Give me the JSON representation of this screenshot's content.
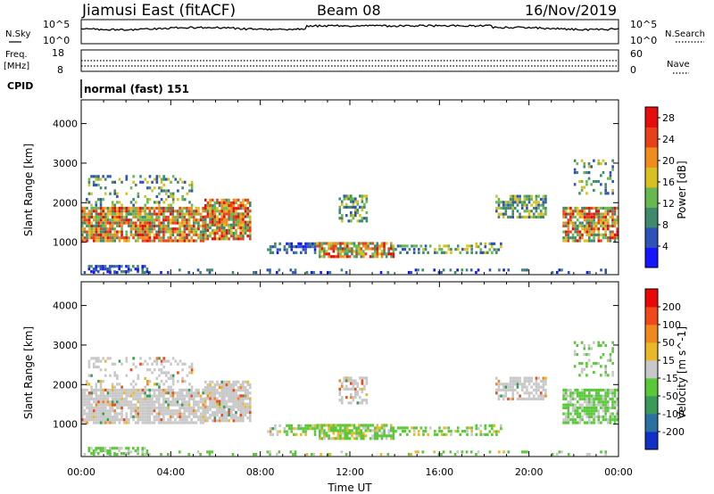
{
  "header": {
    "station": "Jiamusi East (fitACF)",
    "beam": "Beam 08",
    "date": "16/Nov/2019"
  },
  "top_panels": {
    "nsky_label": "N.Sky",
    "nsky_ticks": [
      "10^5",
      "10^0"
    ],
    "nsearch_label": "N.Search",
    "nsearch_ticks": [
      "10^5",
      "10^0"
    ],
    "freq_label_1": "Freq.",
    "freq_label_2": "[MHz]",
    "freq_ticks": [
      "18",
      "8"
    ],
    "nave_label": "Nave",
    "nave_ticks": [
      "60",
      "0"
    ],
    "cpid_label": "CPID",
    "cpid_value": "normal (fast) 151"
  },
  "chart_data": [
    {
      "type": "heatmap",
      "name": "power-panel",
      "xlabel": "",
      "ylabel": "Slant Range [km]",
      "yticks": [
        "1000",
        "2000",
        "3000",
        "4000"
      ],
      "yrange_km": [
        180,
        4600
      ],
      "xrange_hours": [
        0,
        24
      ],
      "colorbar": {
        "label": "Power [dB]",
        "ticks": [
          "4",
          "8",
          "12",
          "16",
          "20",
          "24",
          "28"
        ],
        "range": [
          0,
          30
        ],
        "colors": [
          "#1515ff",
          "#2f52b8",
          "#3f8a6c",
          "#68b850",
          "#d8c020",
          "#f08c1c",
          "#e84018",
          "#e80c0c"
        ]
      }
    },
    {
      "type": "heatmap",
      "name": "velocity-panel",
      "xlabel": "Time UT",
      "ylabel": "Slant Range [km]",
      "yticks": [
        "1000",
        "2000",
        "3000",
        "4000"
      ],
      "yrange_km": [
        180,
        4600
      ],
      "xrange_hours": [
        0,
        24
      ],
      "xticks": [
        "00:00",
        "04:00",
        "08:00",
        "12:00",
        "16:00",
        "20:00",
        "00:00"
      ],
      "colorbar": {
        "label": "Velocity [m s^-1]",
        "ticks": [
          "200",
          "100",
          "50",
          "15",
          "-15",
          "-50",
          "-100",
          "-200"
        ],
        "colors": [
          "#1030c8",
          "#2a70a0",
          "#3a9a58",
          "#58c838",
          "#c8c8c8",
          "#e8b828",
          "#f08820",
          "#f04818",
          "#e80808"
        ]
      }
    }
  ]
}
